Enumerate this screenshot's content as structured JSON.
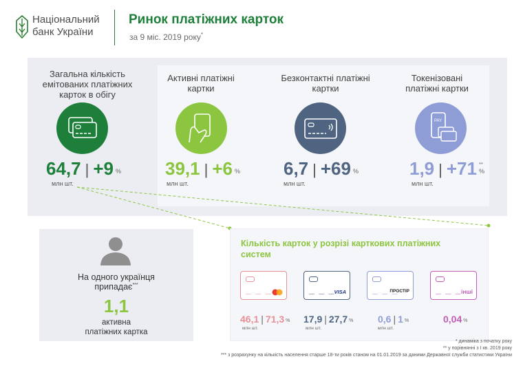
{
  "header": {
    "logo_line1": "Національний",
    "logo_line2": "банк України",
    "title": "Ринок платіжних карток",
    "subtitle": "за 9 міс. 2019 року",
    "subtitle_mark": "*"
  },
  "colors": {
    "dark_green": "#1e7f3a",
    "light_green": "#8cc540",
    "slate": "#4f6480",
    "periwinkle": "#8f9dd6",
    "pink": "#e7909a",
    "navy": "#4f6480",
    "purple": "#c15cb7"
  },
  "metrics": [
    {
      "label": "Загальна кількість емітованих платіжних карток в обігу",
      "value": "64,7",
      "change": "+9",
      "pct": "%",
      "unit": "млн шт.",
      "icon": "cards-icon"
    },
    {
      "label": "Активні платіжні картки",
      "value": "39,1",
      "change": "+6",
      "pct": "%",
      "unit": "млн шт.",
      "icon": "hand-card-icon"
    },
    {
      "label": "Безконтактні платіжні картки",
      "value": "6,7",
      "change": "+69",
      "pct": "%",
      "unit": "млн шт.",
      "icon": "contactless-card-icon"
    },
    {
      "label": "Токенізовані платіжні картки",
      "value": "1,9",
      "change": "+71",
      "pct": "%",
      "pct_mark": "**",
      "unit": "млн шт.",
      "icon": "phone-pay-icon"
    }
  ],
  "per_capita": {
    "text_line1": "На одного українця",
    "text_line2": "припадає",
    "mark": "***",
    "value": "1,1",
    "sub_line1": "активна",
    "sub_line2": "платіжних картка",
    "icon": "person-icon"
  },
  "systems": {
    "title": "Кількість карток у розрізі карткових платіжних систем",
    "items": [
      {
        "brand": "mastercard",
        "value": "46,1",
        "pct_value": "71,3",
        "pct": "%",
        "unit": "млн шт."
      },
      {
        "brand": "VISA",
        "value": "17,9",
        "pct_value": "27,7",
        "pct": "%",
        "unit": "млн шт."
      },
      {
        "brand": "ПРОСТІР",
        "value": "0,6",
        "pct_value": "1",
        "pct": "%",
        "unit": "млн шт."
      },
      {
        "brand": "інші",
        "value": "",
        "pct_value": "0,04",
        "pct": "%",
        "unit": ""
      }
    ]
  },
  "footnotes": [
    "* динаміка з початку року",
    "** у порівнянні з І кв. 2019 року",
    "*** з розрахунку на кількість населення старше 18-ти років станом на 01.01.2019 за даними Державної служби статистики України"
  ]
}
